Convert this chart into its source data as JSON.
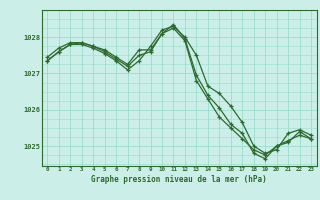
{
  "bg_color": "#cceee8",
  "grid_color": "#99ddcc",
  "line_color": "#2d6a2d",
  "title": "Graphe pression niveau de la mer (hPa)",
  "ylabel_ticks": [
    1025,
    1026,
    1027,
    1028
  ],
  "xlim": [
    -0.5,
    23.5
  ],
  "ylim": [
    1024.45,
    1028.75
  ],
  "series1": {
    "x": [
      0,
      1,
      2,
      3,
      4,
      5,
      6,
      7,
      8,
      9,
      10,
      11,
      12,
      13,
      14,
      15,
      16,
      17,
      18,
      19,
      20,
      21,
      22,
      23
    ],
    "y": [
      1027.45,
      1027.7,
      1027.85,
      1027.85,
      1027.75,
      1027.65,
      1027.45,
      1027.25,
      1027.65,
      1027.65,
      1028.1,
      1028.35,
      1027.95,
      1026.95,
      1026.4,
      1026.05,
      1025.6,
      1025.35,
      1024.8,
      1024.65,
      1025.0,
      1025.15,
      1025.3,
      1025.2
    ]
  },
  "series2": {
    "x": [
      0,
      1,
      2,
      3,
      4,
      5,
      6,
      7,
      8,
      9,
      10,
      11,
      12,
      13,
      14,
      15,
      16,
      17,
      18,
      19,
      20,
      21,
      22,
      23
    ],
    "y": [
      1027.35,
      1027.6,
      1027.8,
      1027.8,
      1027.7,
      1027.55,
      1027.35,
      1027.1,
      1027.35,
      1027.75,
      1028.2,
      1028.3,
      1028.0,
      1027.5,
      1026.65,
      1026.45,
      1026.1,
      1025.65,
      1025.0,
      1024.8,
      1024.9,
      1025.35,
      1025.45,
      1025.3
    ]
  },
  "series3": {
    "x": [
      0,
      1,
      2,
      3,
      4,
      5,
      6,
      7,
      8,
      9,
      10,
      11,
      12,
      13,
      14,
      15,
      16,
      17,
      18,
      19,
      20,
      21,
      22,
      23
    ],
    "y": [
      1027.35,
      1027.6,
      1027.8,
      1027.85,
      1027.75,
      1027.6,
      1027.4,
      1027.2,
      1027.5,
      1027.6,
      1028.1,
      1028.25,
      1027.9,
      1026.8,
      1026.3,
      1025.8,
      1025.5,
      1025.2,
      1024.9,
      1024.75,
      1025.0,
      1025.1,
      1025.4,
      1025.2
    ]
  }
}
